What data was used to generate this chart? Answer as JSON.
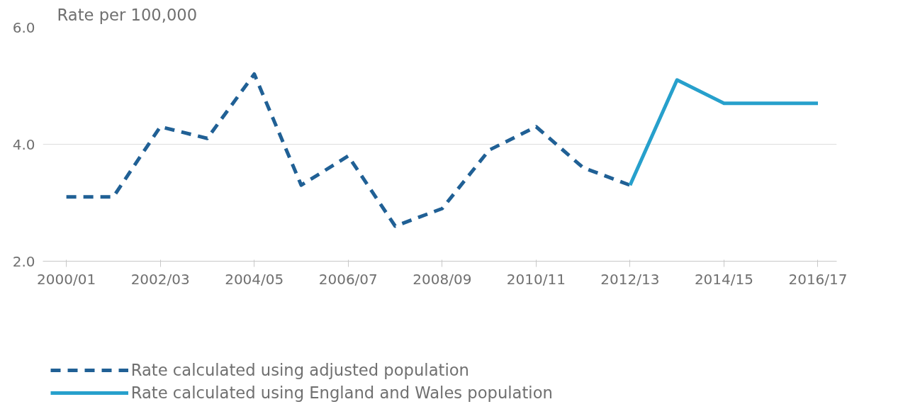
{
  "chart_data": {
    "type": "line",
    "ylabel": "Rate per 100,000",
    "categories": [
      "2000/01",
      null,
      "2002/03",
      null,
      "2004/05",
      null,
      "2006/07",
      null,
      "2008/09",
      null,
      "2010/11",
      null,
      "2012/13",
      null,
      "2014/15",
      null,
      "2016/17"
    ],
    "series": [
      {
        "name": "Rate calculated using adjusted population",
        "color": "#206095",
        "line_style": "dashed",
        "values": [
          3.1,
          3.1,
          4.3,
          4.1,
          5.2,
          3.3,
          3.8,
          2.6,
          2.9,
          3.9,
          4.3,
          3.6,
          3.3,
          null,
          null,
          null,
          null
        ]
      },
      {
        "name": "Rate calculated using England and Wales population",
        "color": "#27a0cc",
        "line_style": "solid",
        "values": [
          null,
          null,
          null,
          null,
          null,
          null,
          null,
          null,
          null,
          null,
          null,
          null,
          3.3,
          5.1,
          4.7,
          4.7,
          4.7
        ]
      }
    ],
    "ylim": [
      2.0,
      6.0
    ],
    "yticks": [
      {
        "value": 2,
        "label": "2.0"
      },
      {
        "value": 4,
        "label": "4.0"
      },
      {
        "value": 6,
        "label": "6.0"
      }
    ],
    "grid": "y",
    "legend": "bottom",
    "marker": "none"
  }
}
